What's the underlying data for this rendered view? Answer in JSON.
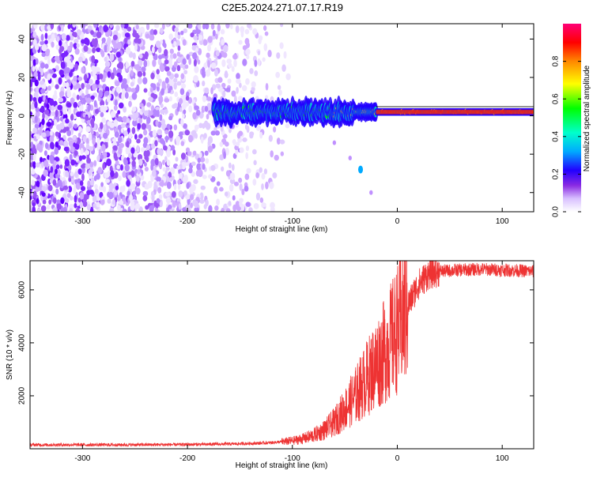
{
  "title": "C2E5.2024.271.07.17.R19",
  "colorbar": {
    "label": "Normalized spectral amplitude",
    "ticks": [
      "0.0",
      "0.2",
      "0.4",
      "0.6",
      "0.8"
    ],
    "tick_values": [
      0.0,
      0.2,
      0.4,
      0.6,
      0.8
    ],
    "range": [
      0,
      1
    ]
  },
  "chart_data": [
    {
      "type": "heatmap",
      "name": "spectrogram",
      "xlabel": "Height of straight line (km)",
      "ylabel": "Frequency (Hz)",
      "xlim": [
        -350,
        130
      ],
      "ylim": [
        -50,
        48
      ],
      "x_ticks": [
        -300,
        -200,
        -100,
        0,
        100
      ],
      "y_ticks": [
        -40,
        -20,
        0,
        20,
        40
      ],
      "x_tick_labels": [
        "-300",
        "-200",
        "-100",
        "0",
        "100"
      ],
      "y_tick_labels": [
        "-40",
        "-20",
        "0",
        "20",
        "40"
      ],
      "colormap": [
        "#ffffff",
        "#e6d4ff",
        "#a066f0",
        "#6a00ff",
        "#0000ff",
        "#00a0ff",
        "#00ffcc",
        "#00ff00",
        "#ffff00",
        "#ff8000",
        "#ff0000",
        "#ff0080"
      ],
      "features": {
        "noise_region_x": [
          -350,
          -120
        ],
        "signal_start_x": -175,
        "signal_center_y": 2,
        "tail_points": [
          [
            -60,
            -14
          ],
          [
            -45,
            -22
          ],
          [
            -35,
            -28
          ],
          [
            -25,
            -40
          ]
        ]
      }
    },
    {
      "type": "line",
      "name": "snr",
      "xlabel": "Height of straight line (km)",
      "ylabel": "SNR (10 * v/v)",
      "xlim": [
        -350,
        130
      ],
      "ylim": [
        0,
        7100
      ],
      "x_ticks": [
        -300,
        -200,
        -100,
        0,
        100
      ],
      "y_ticks": [
        2000,
        4000,
        6000
      ],
      "x_tick_labels": [
        "-300",
        "-200",
        "-100",
        "0",
        "100"
      ],
      "y_tick_labels": [
        "2000",
        "4000",
        "6000"
      ],
      "color": "#ee3333",
      "x": [
        -350,
        -300,
        -250,
        -200,
        -160,
        -140,
        -120,
        -100,
        -90,
        -80,
        -70,
        -60,
        -50,
        -40,
        -30,
        -20,
        -10,
        0,
        10,
        20,
        30,
        40,
        60,
        80,
        100,
        130
      ],
      "y": [
        150,
        150,
        150,
        160,
        180,
        200,
        230,
        300,
        380,
        500,
        700,
        1000,
        1500,
        2000,
        2600,
        3200,
        3800,
        4500,
        5400,
        6200,
        6600,
        6700,
        6750,
        6780,
        6750,
        6700
      ]
    }
  ]
}
